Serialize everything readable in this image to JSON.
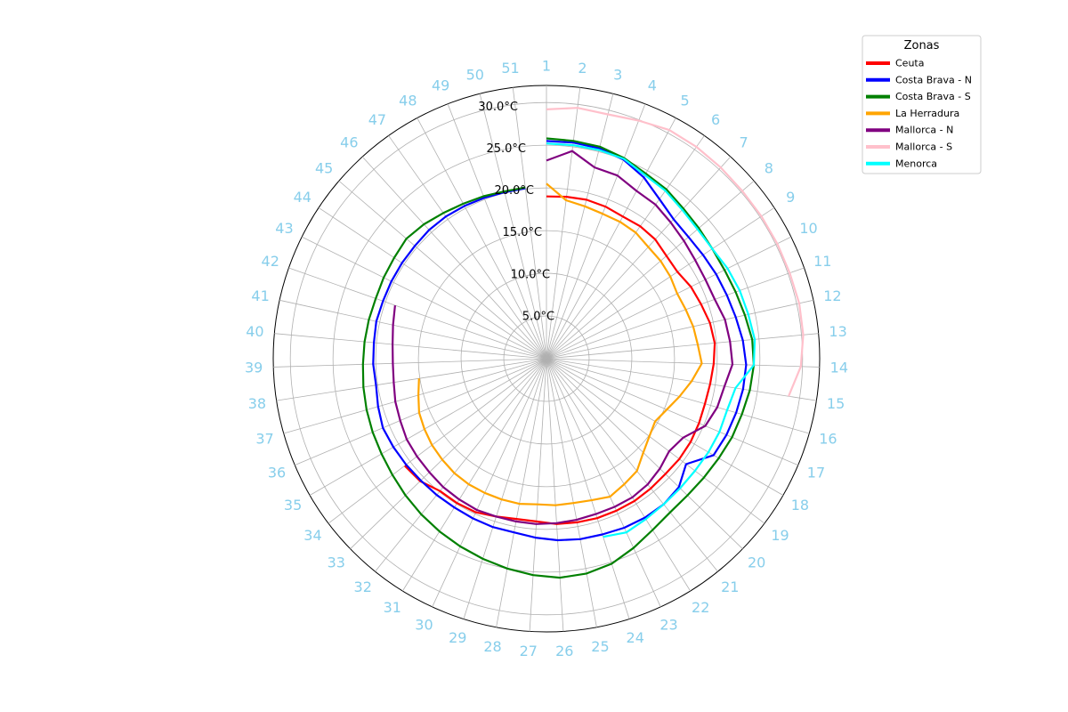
{
  "chart_data": {
    "type": "line",
    "subtype": "polar",
    "title": "",
    "angular_labels": [
      "1",
      "2",
      "3",
      "4",
      "5",
      "6",
      "7",
      "8",
      "9",
      "10",
      "11",
      "12",
      "13",
      "14",
      "15",
      "16",
      "17",
      "18",
      "19",
      "20",
      "21",
      "22",
      "23",
      "24",
      "25",
      "26",
      "27",
      "28",
      "29",
      "30",
      "31",
      "32",
      "33",
      "34",
      "35",
      "36",
      "37",
      "38",
      "39",
      "40",
      "41",
      "42",
      "43",
      "44",
      "45",
      "46",
      "47",
      "48",
      "49",
      "50",
      "51"
    ],
    "radial_ticks": [
      "5.0°C",
      "10.0°C",
      "15.0°C",
      "20.0°C",
      "25.0°C",
      "30.0°C"
    ],
    "radial_tick_values": [
      5,
      10,
      15,
      20,
      25,
      30
    ],
    "rlim": [
      0,
      32
    ],
    "grid": true,
    "label_color": "#87ceeb",
    "legend": {
      "title": "Zonas",
      "placement": "top-right"
    },
    "series": [
      {
        "name": "Ceuta",
        "color": "#ff0000",
        "start": 1,
        "values": [
          19,
          19.1,
          19.2,
          19.1,
          18.9,
          19,
          18.9,
          18.5,
          18.4,
          18.9,
          19.2,
          19.6,
          19.8,
          19.6,
          19.4,
          19.3,
          19.4,
          19.5,
          19.5,
          19.4,
          19.5,
          19.6,
          19.6,
          19.6,
          19.5,
          19.4,
          19.1,
          19.1,
          19.4,
          19.8,
          19.9,
          19.9,
          20.6,
          20.8
        ]
      },
      {
        "name": "Costa Brava - N",
        "color": "#0000ff",
        "start": 1,
        "values": [
          25.5,
          25.5,
          25.4,
          25,
          24.1,
          22.9,
          22.1,
          21.9,
          22,
          22.2,
          22.4,
          22.7,
          23.1,
          23.4,
          23.3,
          23.1,
          22.9,
          22.6,
          20.5,
          21.6,
          21.9,
          21.9,
          21.8,
          21.6,
          21.5,
          21.3,
          21,
          20.7,
          20.7,
          20.6,
          20.5,
          20.5,
          20.5,
          20.6,
          20.7,
          20.8,
          20.5,
          20.2,
          20.3,
          20.3,
          20.4,
          20.3,
          20.3,
          20.3,
          20.3,
          20.4,
          20.4,
          20.3,
          20.2,
          20.1,
          20.1
        ]
      },
      {
        "name": "Costa Brava - S",
        "color": "#008000",
        "start": 1,
        "values": [
          25.8,
          25.7,
          25.6,
          25.2,
          24.6,
          24.3,
          23.8,
          23.5,
          23.3,
          23.3,
          23.5,
          23.8,
          24.2,
          24.3,
          24.1,
          23.8,
          23.6,
          23.3,
          23.1,
          23,
          23.1,
          23.6,
          24.4,
          25.2,
          25.6,
          25.7,
          25.4,
          25,
          24.6,
          24.2,
          23.8,
          23.4,
          23,
          22.6,
          22.3,
          22.1,
          21.9,
          21.7,
          21.5,
          21.4,
          21.3,
          21.2,
          21.3,
          21.4,
          21.6,
          21.3,
          20.9,
          20.6,
          20.4,
          20.2,
          20.2
        ]
      },
      {
        "name": "La Herradura",
        "color": "#ffa500",
        "start": 1,
        "values": [
          20.5,
          18.7,
          18.4,
          18.2,
          18.2,
          18.1,
          17.7,
          17.6,
          17.4,
          17.1,
          17.3,
          17.6,
          17.8,
          18.2,
          17.2,
          16.2,
          15.3,
          14.7,
          15.1,
          15.8,
          16.9,
          17.3,
          17.8,
          17.4,
          17.2,
          17.2,
          17.1,
          17.3,
          17.3,
          17.3,
          17.3,
          17.2,
          17.0,
          16.8,
          16.5,
          16.2,
          15.6,
          15.1
        ]
      },
      {
        "name": "Mallorca - N",
        "color": "#800080",
        "start": 1,
        "values": [
          23.2,
          24.5,
          23.1,
          23,
          22.3,
          22.1,
          21.6,
          21.2,
          20.9,
          20.8,
          20.9,
          21.4,
          21.6,
          21.8,
          21.1,
          20.8,
          20.2,
          18.5,
          18,
          18.5,
          18.9,
          19.1,
          19.1,
          19.1,
          19.2,
          19.3,
          19.4,
          19.4,
          19.4,
          19.5,
          19.4,
          19.3,
          19.1,
          19,
          18.9,
          18.6,
          18.4,
          18.1,
          18,
          18.1,
          18.4,
          18.8
        ]
      },
      {
        "name": "Mallorca - S",
        "color": "#ffc0cb",
        "start": 1,
        "values": [
          29.2,
          29.6,
          29.5,
          29.9,
          30.4,
          30.4,
          30.3,
          30.2,
          30.2,
          30.2,
          30.2,
          30.3,
          30.2,
          29.8,
          28.7
        ]
      },
      {
        "name": "Menorca",
        "color": "#00ffff",
        "start": 1,
        "values": [
          25.2,
          25.2,
          25.2,
          25.1,
          24.4,
          24.1,
          23.6,
          23.3,
          23.3,
          23.7,
          24,
          24.2,
          24.5,
          24.3,
          22.4,
          22,
          22,
          21.9,
          21.8,
          21.8,
          21.9,
          22.1,
          22.4,
          21.9
        ]
      }
    ]
  }
}
